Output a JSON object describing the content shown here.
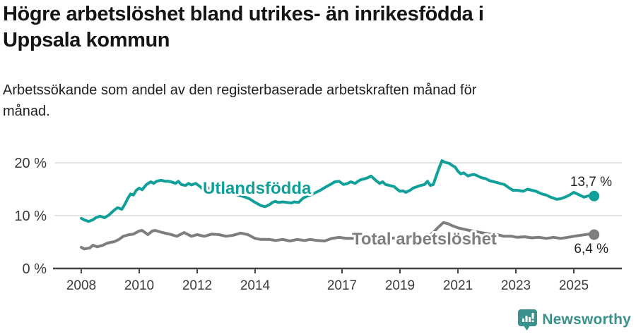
{
  "header": {
    "title_line1": "Högre arbetslöshet bland utrikes- än inrikesfödda i",
    "title_line2": "Uppsala kommun",
    "subtitle_line1": "Arbetssökande som andel av den registerbaserade arbetskraften månad för",
    "subtitle_line2": "månad."
  },
  "chart_data": {
    "type": "line",
    "title": "Högre arbetslöshet bland utrikes- än inrikesfödda i Uppsala kommun",
    "subtitle": "Arbetssökande som andel av den registerbaserade arbetskraften månad för månad.",
    "xlabel": "",
    "ylabel": "",
    "x_unit": "year (decimal years, monthly series)",
    "xlim": [
      2007.1,
      2026.6
    ],
    "ylim": [
      0,
      21.5
    ],
    "grid": "horizontal",
    "legend_position": "inline-labels-on-lines",
    "xticks": [
      2008,
      2010,
      2012,
      2014,
      2017,
      2019,
      2021,
      2023,
      2025
    ],
    "yticks": [
      {
        "value": 0,
        "label": "0 %"
      },
      {
        "value": 10,
        "label": "10 %"
      },
      {
        "value": 20,
        "label": "20 %"
      }
    ],
    "series": [
      {
        "name": "Utlandsfödda",
        "color": "#10a099",
        "end_value": 13.7,
        "end_label": "13,7 %",
        "points": [
          [
            2008.0,
            9.5
          ],
          [
            2008.1,
            9.2
          ],
          [
            2008.25,
            8.9
          ],
          [
            2008.4,
            9.2
          ],
          [
            2008.5,
            9.6
          ],
          [
            2008.65,
            9.9
          ],
          [
            2008.8,
            9.6
          ],
          [
            2008.95,
            10.1
          ],
          [
            2009.05,
            10.6
          ],
          [
            2009.15,
            11.1
          ],
          [
            2009.25,
            11.5
          ],
          [
            2009.4,
            11.2
          ],
          [
            2009.5,
            12.1
          ],
          [
            2009.6,
            13.2
          ],
          [
            2009.7,
            14.1
          ],
          [
            2009.8,
            13.9
          ],
          [
            2009.9,
            14.8
          ],
          [
            2010.0,
            15.2
          ],
          [
            2010.1,
            14.9
          ],
          [
            2010.25,
            15.9
          ],
          [
            2010.4,
            16.4
          ],
          [
            2010.5,
            16.1
          ],
          [
            2010.6,
            16.5
          ],
          [
            2010.75,
            16.7
          ],
          [
            2010.9,
            16.5
          ],
          [
            2011.0,
            16.5
          ],
          [
            2011.1,
            16.4
          ],
          [
            2011.25,
            16.1
          ],
          [
            2011.35,
            16.5
          ],
          [
            2011.45,
            15.9
          ],
          [
            2011.6,
            15.7
          ],
          [
            2011.7,
            16.1
          ],
          [
            2011.8,
            15.8
          ],
          [
            2011.95,
            16.1
          ],
          [
            2012.1,
            15.5
          ],
          [
            2012.2,
            15.0
          ],
          [
            2012.35,
            15.3
          ],
          [
            2012.5,
            15.1
          ],
          [
            2012.65,
            14.8
          ],
          [
            2012.8,
            14.9
          ],
          [
            2013.0,
            14.5
          ],
          [
            2013.2,
            14.3
          ],
          [
            2013.4,
            13.9
          ],
          [
            2013.6,
            13.6
          ],
          [
            2013.8,
            13.2
          ],
          [
            2014.0,
            12.5
          ],
          [
            2014.2,
            11.9
          ],
          [
            2014.35,
            11.7
          ],
          [
            2014.5,
            12.1
          ],
          [
            2014.6,
            12.5
          ],
          [
            2014.7,
            12.7
          ],
          [
            2014.8,
            12.5
          ],
          [
            2014.95,
            12.6
          ],
          [
            2015.1,
            12.5
          ],
          [
            2015.25,
            12.4
          ],
          [
            2015.35,
            12.6
          ],
          [
            2015.5,
            12.5
          ],
          [
            2015.65,
            13.3
          ],
          [
            2015.8,
            13.7
          ],
          [
            2015.95,
            14.0
          ],
          [
            2016.1,
            14.4
          ],
          [
            2016.25,
            14.8
          ],
          [
            2016.4,
            15.3
          ],
          [
            2016.6,
            15.9
          ],
          [
            2016.75,
            16.4
          ],
          [
            2016.9,
            16.5
          ],
          [
            2017.05,
            15.9
          ],
          [
            2017.2,
            16.1
          ],
          [
            2017.3,
            16.4
          ],
          [
            2017.45,
            16.1
          ],
          [
            2017.55,
            16.5
          ],
          [
            2017.65,
            16.8
          ],
          [
            2017.8,
            17.0
          ],
          [
            2017.9,
            17.2
          ],
          [
            2018.0,
            17.5
          ],
          [
            2018.1,
            17.0
          ],
          [
            2018.2,
            16.5
          ],
          [
            2018.3,
            16.1
          ],
          [
            2018.4,
            16.4
          ],
          [
            2018.5,
            15.9
          ],
          [
            2018.65,
            15.7
          ],
          [
            2018.8,
            15.5
          ],
          [
            2018.9,
            15.0
          ],
          [
            2019.0,
            14.6
          ],
          [
            2019.1,
            14.7
          ],
          [
            2019.2,
            14.4
          ],
          [
            2019.35,
            14.8
          ],
          [
            2019.45,
            15.2
          ],
          [
            2019.6,
            15.5
          ],
          [
            2019.7,
            15.7
          ],
          [
            2019.85,
            15.9
          ],
          [
            2019.95,
            16.5
          ],
          [
            2020.05,
            15.7
          ],
          [
            2020.15,
            15.9
          ],
          [
            2020.25,
            17.5
          ],
          [
            2020.35,
            19.0
          ],
          [
            2020.45,
            20.4
          ],
          [
            2020.55,
            20.1
          ],
          [
            2020.7,
            19.9
          ],
          [
            2020.8,
            19.5
          ],
          [
            2020.9,
            19.2
          ],
          [
            2021.0,
            18.4
          ],
          [
            2021.1,
            17.9
          ],
          [
            2021.2,
            18.1
          ],
          [
            2021.35,
            17.5
          ],
          [
            2021.45,
            17.7
          ],
          [
            2021.55,
            17.8
          ],
          [
            2021.65,
            17.6
          ],
          [
            2021.8,
            17.2
          ],
          [
            2021.95,
            17.0
          ],
          [
            2022.1,
            16.6
          ],
          [
            2022.25,
            16.4
          ],
          [
            2022.45,
            16.1
          ],
          [
            2022.6,
            15.9
          ],
          [
            2022.75,
            15.3
          ],
          [
            2022.9,
            14.8
          ],
          [
            2023.05,
            14.8
          ],
          [
            2023.25,
            14.6
          ],
          [
            2023.4,
            15.0
          ],
          [
            2023.55,
            14.8
          ],
          [
            2023.7,
            14.6
          ],
          [
            2023.9,
            14.1
          ],
          [
            2024.05,
            13.9
          ],
          [
            2024.2,
            13.5
          ],
          [
            2024.4,
            13.1
          ],
          [
            2024.55,
            13.2
          ],
          [
            2024.7,
            13.5
          ],
          [
            2024.85,
            13.9
          ],
          [
            2025.0,
            14.4
          ],
          [
            2025.2,
            13.9
          ],
          [
            2025.35,
            13.5
          ],
          [
            2025.55,
            13.8
          ],
          [
            2025.7,
            13.7
          ]
        ]
      },
      {
        "name": "Total arbetslöshet",
        "color": "#7e7e7e",
        "end_value": 6.4,
        "end_label": "6,4 %",
        "points": [
          [
            2008.0,
            4.0
          ],
          [
            2008.1,
            3.7
          ],
          [
            2008.3,
            3.9
          ],
          [
            2008.4,
            4.4
          ],
          [
            2008.55,
            4.1
          ],
          [
            2008.75,
            4.4
          ],
          [
            2008.9,
            4.8
          ],
          [
            2009.15,
            5.1
          ],
          [
            2009.3,
            5.5
          ],
          [
            2009.45,
            6.1
          ],
          [
            2009.65,
            6.4
          ],
          [
            2009.8,
            6.5
          ],
          [
            2010.0,
            7.1
          ],
          [
            2010.1,
            7.2
          ],
          [
            2010.3,
            6.4
          ],
          [
            2010.45,
            7.1
          ],
          [
            2010.55,
            7.2
          ],
          [
            2010.8,
            6.8
          ],
          [
            2011.05,
            6.5
          ],
          [
            2011.3,
            6.1
          ],
          [
            2011.55,
            6.8
          ],
          [
            2011.8,
            6.1
          ],
          [
            2012.0,
            6.4
          ],
          [
            2012.25,
            6.1
          ],
          [
            2012.5,
            6.5
          ],
          [
            2012.75,
            6.4
          ],
          [
            2013.0,
            6.1
          ],
          [
            2013.25,
            6.3
          ],
          [
            2013.5,
            6.7
          ],
          [
            2013.75,
            6.4
          ],
          [
            2014.0,
            5.7
          ],
          [
            2014.2,
            5.5
          ],
          [
            2014.5,
            5.5
          ],
          [
            2014.7,
            5.3
          ],
          [
            2014.95,
            5.5
          ],
          [
            2015.2,
            5.2
          ],
          [
            2015.45,
            5.5
          ],
          [
            2015.7,
            5.3
          ],
          [
            2015.9,
            5.5
          ],
          [
            2016.15,
            5.3
          ],
          [
            2016.4,
            5.2
          ],
          [
            2016.65,
            5.7
          ],
          [
            2016.9,
            5.9
          ],
          [
            2017.15,
            5.7
          ],
          [
            2017.4,
            5.7
          ],
          [
            2017.7,
            5.8
          ],
          [
            2018.0,
            5.9
          ],
          [
            2018.3,
            5.8
          ],
          [
            2018.6,
            5.7
          ],
          [
            2018.9,
            5.8
          ],
          [
            2019.2,
            5.8
          ],
          [
            2019.5,
            5.9
          ],
          [
            2019.8,
            6.0
          ],
          [
            2020.0,
            6.2
          ],
          [
            2020.15,
            6.8
          ],
          [
            2020.3,
            7.7
          ],
          [
            2020.5,
            8.7
          ],
          [
            2020.65,
            8.5
          ],
          [
            2020.8,
            8.1
          ],
          [
            2021.0,
            7.7
          ],
          [
            2021.15,
            7.5
          ],
          [
            2021.4,
            7.2
          ],
          [
            2021.7,
            6.9
          ],
          [
            2021.9,
            6.7
          ],
          [
            2022.1,
            6.5
          ],
          [
            2022.35,
            6.4
          ],
          [
            2022.6,
            6.1
          ],
          [
            2022.85,
            6.1
          ],
          [
            2023.05,
            5.9
          ],
          [
            2023.3,
            6.0
          ],
          [
            2023.55,
            5.8
          ],
          [
            2023.8,
            5.9
          ],
          [
            2024.05,
            5.7
          ],
          [
            2024.3,
            5.9
          ],
          [
            2024.55,
            5.7
          ],
          [
            2024.8,
            5.9
          ],
          [
            2025.0,
            6.1
          ],
          [
            2025.25,
            6.3
          ],
          [
            2025.5,
            6.5
          ],
          [
            2025.7,
            6.4
          ]
        ]
      }
    ]
  },
  "footer": {
    "brand": "Newsworthy",
    "brand_color": "#3b918d",
    "logo_icon": "newsworthy-pin-barchart-icon"
  },
  "colors": {
    "background": "#ffffff",
    "title_text": "#151515",
    "axis_text": "#3a3a3a",
    "axis_line": "#444444",
    "gridline": "#e2e2e2",
    "series_utlandsfodda": "#10a099",
    "series_total": "#7e7e7e"
  }
}
